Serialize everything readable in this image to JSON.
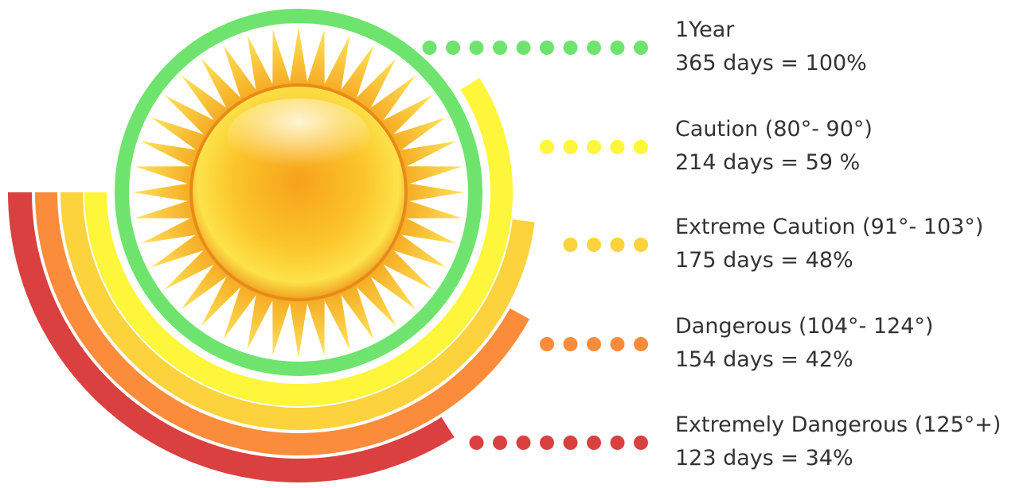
{
  "chart_data": {
    "type": "radial-bar",
    "categories": [
      "1Year",
      "Caution (80°- 90°)",
      "Extreme Caution (91°- 103°)",
      "Dangerous (104°- 124°)",
      "Extremely Dangerous (125°+)"
    ],
    "values": [
      100,
      59,
      48,
      42,
      34
    ],
    "value_labels": [
      "365 days = 100%",
      "214 days = 59 %",
      "175 days =  48%",
      "154 days =  42%",
      "123 days =  34%"
    ],
    "colors": [
      "#6ee46e",
      "#fdf63b",
      "#fcd33d",
      "#fb8c3b",
      "#db4040"
    ],
    "max": 100
  }
}
